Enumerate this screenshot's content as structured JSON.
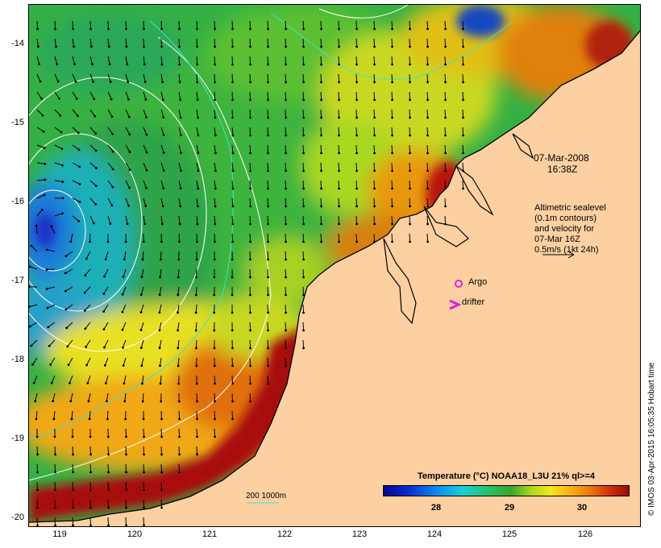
{
  "map": {
    "y_ticks": [
      "-14",
      "-15",
      "-16",
      "-17",
      "-18",
      "-19",
      "-20"
    ],
    "x_ticks": [
      "119",
      "120",
      "121",
      "122",
      "123",
      "124",
      "125",
      "126"
    ],
    "timestamp_line1": "07-Mar-2008",
    "timestamp_line2": "16:38Z",
    "altimetry_note": [
      "Altimetric sealevel",
      "(0.1m contours)",
      "and velocity for",
      "07-Mar 16Z",
      "0.5m/s (1kt 24h)"
    ],
    "argo_label": "Argo",
    "drifter_label": "drifter",
    "depth_legend": "200  1000m",
    "colorbar_title": "Temperature (°C) NOAA18_L3U 21% ql>=4",
    "colorbar_ticks": [
      "28",
      "29",
      "30"
    ],
    "copyright": "© IMOS 03-Apr-2015 16:05:35 Hobart time"
  },
  "colors": {
    "land": "#fdd0a2",
    "argo_marker": "#e020e0",
    "drifter_marker": "#e020e0",
    "contours": "#ffffff",
    "depth_contours": "#40e0d0",
    "velocity_arrows": "#000000"
  }
}
